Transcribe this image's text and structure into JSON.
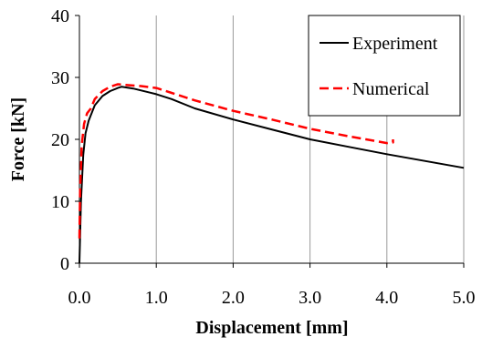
{
  "chart_data": {
    "type": "line",
    "title": "",
    "xlabel": "Displacement [mm]",
    "ylabel": "Force [kN]",
    "xlim": [
      0,
      5
    ],
    "ylim": [
      0,
      40
    ],
    "x_ticks": [
      0,
      1,
      2,
      3,
      4,
      5
    ],
    "y_ticks": [
      0,
      10,
      20,
      30,
      40
    ],
    "x_tick_labels": [
      "0.0",
      "1.0",
      "2.0",
      "3.0",
      "4.0",
      "5.0"
    ],
    "y_tick_labels": [
      "0",
      "10",
      "20",
      "30",
      "40"
    ],
    "grid": "vertical",
    "legend_position": "top-right",
    "series": [
      {
        "name": "Experiment",
        "color": "#000000",
        "dash": "solid",
        "points": [
          [
            0.0,
            0.0
          ],
          [
            0.02,
            10.0
          ],
          [
            0.05,
            17.5
          ],
          [
            0.08,
            21.0
          ],
          [
            0.12,
            23.0
          ],
          [
            0.2,
            25.5
          ],
          [
            0.3,
            27.0
          ],
          [
            0.4,
            27.8
          ],
          [
            0.5,
            28.3
          ],
          [
            0.55,
            28.5
          ],
          [
            0.7,
            28.2
          ],
          [
            0.9,
            27.6
          ],
          [
            1.0,
            27.3
          ],
          [
            1.2,
            26.5
          ],
          [
            1.5,
            25.0
          ],
          [
            2.0,
            23.2
          ],
          [
            2.5,
            21.6
          ],
          [
            3.0,
            20.0
          ],
          [
            3.5,
            18.8
          ],
          [
            4.0,
            17.6
          ],
          [
            4.5,
            16.5
          ],
          [
            5.0,
            15.4
          ]
        ]
      },
      {
        "name": "Numerical",
        "color": "#ff0000",
        "dash": "dashed",
        "points": [
          [
            0.0,
            4.0
          ],
          [
            0.01,
            12.0
          ],
          [
            0.03,
            19.0
          ],
          [
            0.06,
            22.5
          ],
          [
            0.1,
            24.2
          ],
          [
            0.15,
            25.0
          ],
          [
            0.2,
            26.5
          ],
          [
            0.3,
            27.8
          ],
          [
            0.4,
            28.5
          ],
          [
            0.5,
            28.9
          ],
          [
            0.6,
            28.8
          ],
          [
            0.8,
            28.6
          ],
          [
            1.0,
            28.3
          ],
          [
            1.2,
            27.5
          ],
          [
            1.5,
            26.3
          ],
          [
            2.0,
            24.6
          ],
          [
            2.5,
            23.2
          ],
          [
            3.0,
            21.7
          ],
          [
            3.5,
            20.5
          ],
          [
            4.0,
            19.4
          ],
          [
            4.08,
            19.5
          ],
          [
            4.08,
            20.0
          ]
        ]
      }
    ]
  }
}
